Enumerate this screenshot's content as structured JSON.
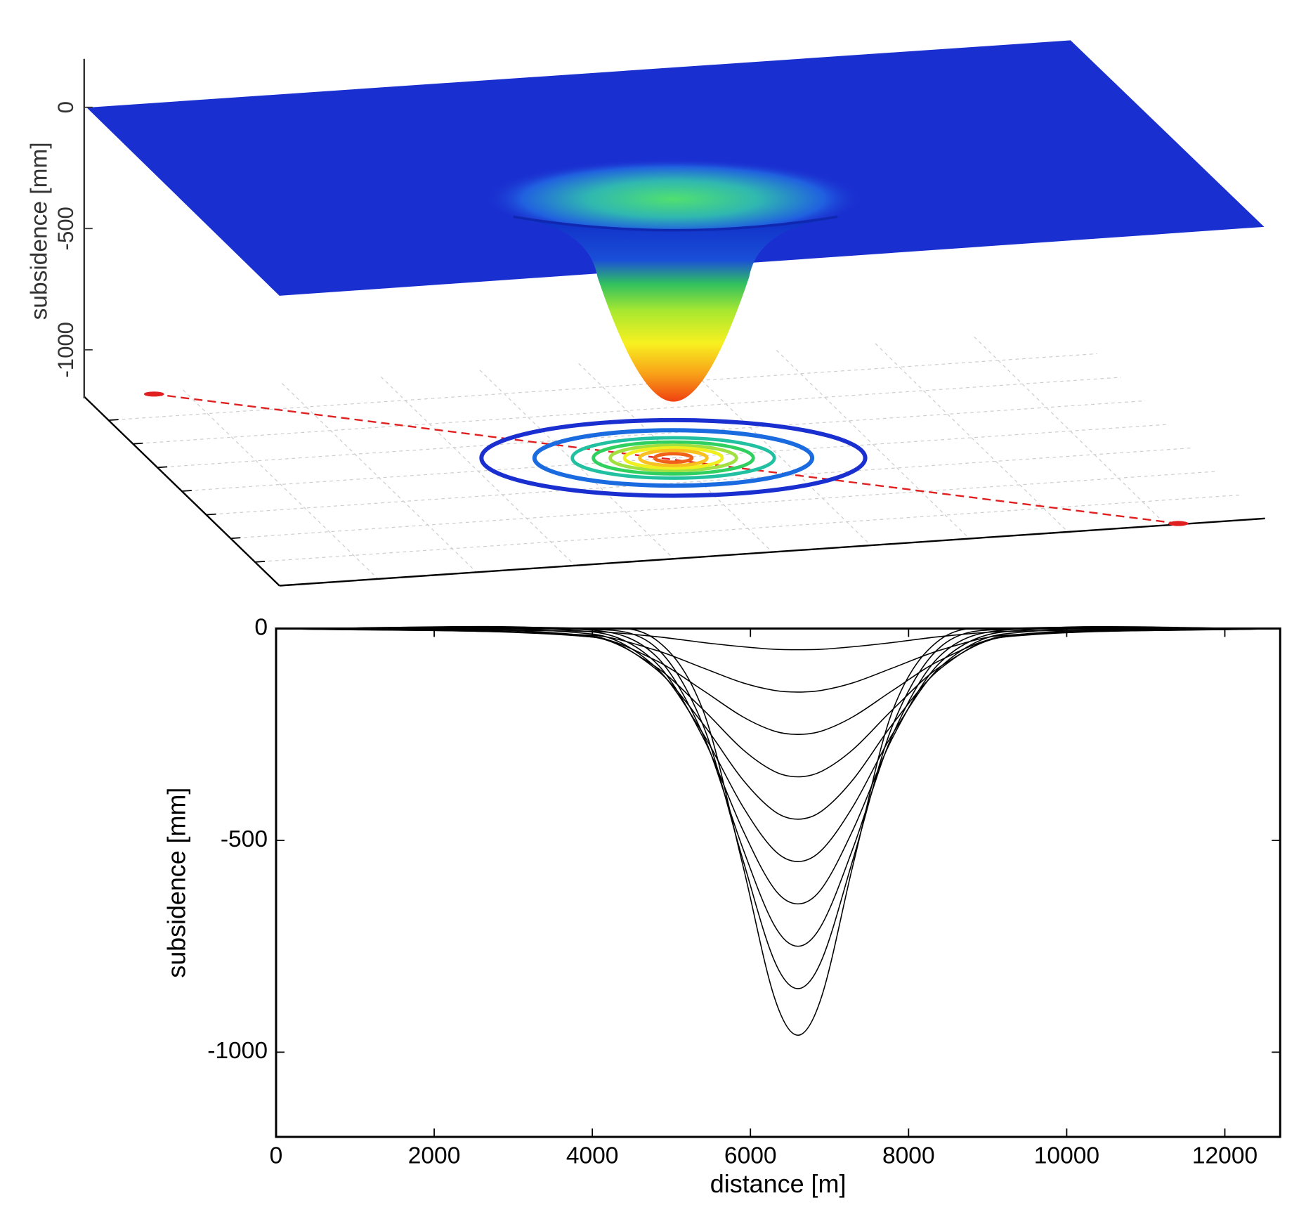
{
  "chart_data": [
    {
      "type": "surface",
      "zlabel": "subsidence [mm]",
      "zlim": [
        -1200,
        200
      ],
      "zticks": [
        0,
        -500,
        -1000
      ]
    },
    {
      "type": "line",
      "xlabel": "distance [m]",
      "ylabel": "subsidence [mm]",
      "x": [
        0,
        4000,
        4800,
        5400,
        5900,
        6300,
        6600,
        6900,
        7300,
        7800,
        8400,
        9200,
        12700
      ],
      "xlim": [
        0,
        12700
      ],
      "xticks": [
        0,
        2000,
        4000,
        6000,
        8000,
        10000,
        12000
      ],
      "ylim": [
        -1200,
        0
      ],
      "yticks": [
        0,
        -500,
        -1000
      ],
      "color": "#000000",
      "series": [
        {
          "values": [
            0,
            -7,
            -19,
            -33,
            -43,
            -49,
            -50,
            -49,
            -43,
            -33,
            -19,
            -7,
            0
          ]
        },
        {
          "values": [
            0,
            -16,
            -51,
            -93,
            -128,
            -146,
            -150,
            -146,
            -128,
            -93,
            -51,
            -16,
            0
          ]
        },
        {
          "values": [
            0,
            -20,
            -75,
            -146,
            -208,
            -242,
            -250,
            -242,
            -208,
            -146,
            -75,
            -20,
            0
          ]
        },
        {
          "values": [
            0,
            -20,
            -90,
            -191,
            -285,
            -337,
            -350,
            -337,
            -285,
            -191,
            -90,
            -20,
            0
          ]
        },
        {
          "values": [
            0,
            -18,
            -95,
            -225,
            -356,
            -431,
            -450,
            -431,
            -356,
            -225,
            -95,
            -18,
            0
          ]
        },
        {
          "values": [
            0,
            -13,
            -91,
            -248,
            -419,
            -523,
            -550,
            -523,
            -419,
            -248,
            -91,
            -13,
            0
          ]
        },
        {
          "values": [
            0,
            -8,
            -80,
            -257,
            -474,
            -614,
            -650,
            -614,
            -474,
            -257,
            -80,
            -8,
            0
          ]
        },
        {
          "values": [
            0,
            -4,
            -64,
            -250,
            -517,
            -700,
            -750,
            -700,
            -517,
            -250,
            -64,
            -4,
            0
          ]
        },
        {
          "values": [
            0,
            -2,
            -44,
            -228,
            -543,
            -783,
            -850,
            -783,
            -543,
            -228,
            -44,
            -2,
            0
          ]
        },
        {
          "values": [
            0,
            0,
            -26,
            -193,
            -556,
            -869,
            -960,
            -869,
            -556,
            -193,
            -26,
            0,
            0
          ]
        }
      ]
    }
  ]
}
